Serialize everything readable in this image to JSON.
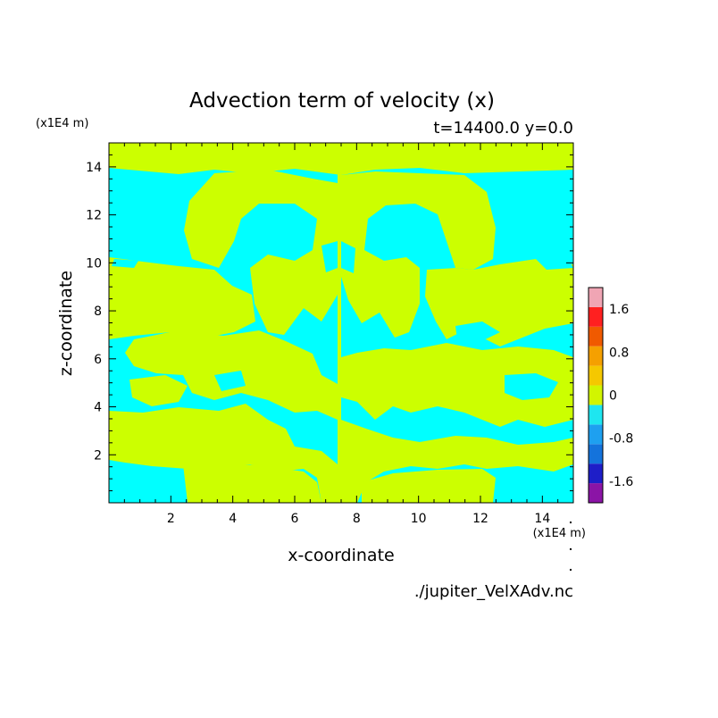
{
  "chart_data": {
    "type": "heatmap",
    "title": "Advection term of velocity (x)",
    "subtitle": "t=14400.0 y=0.0",
    "xlabel": "x-coordinate",
    "ylabel": "z-coordinate",
    "x_unit": "(x1E4 m)",
    "y_unit": "(x1E4 m)",
    "xlim": [
      0,
      15
    ],
    "ylim": [
      0,
      15
    ],
    "x_ticks": [
      "2",
      "4",
      "6",
      "8",
      "10",
      "12",
      "14"
    ],
    "y_ticks": [
      "2",
      "4",
      "6",
      "8",
      "10",
      "12",
      "14"
    ],
    "source_file": "./jupiter_VelXAdv.nc",
    "colorbar": {
      "levels": [
        -2.0,
        -1.6,
        -1.2,
        -0.8,
        -0.4,
        0,
        0.4,
        0.8,
        1.2,
        1.6,
        2.0
      ],
      "colors": [
        "#8b14a6",
        "#1e1ec8",
        "#1473dc",
        "#1ea0f0",
        "#1ee6f0",
        "#d2f500",
        "#f5c800",
        "#f5a000",
        "#f05a00",
        "#ff2020",
        "#f0a5b4"
      ],
      "tick_labels": [
        "1.6",
        "0.8",
        "0",
        "-0.8",
        "-1.6"
      ]
    },
    "dominant_colors": {
      "negative": "#00ffff",
      "positive": "#ccff00"
    }
  }
}
